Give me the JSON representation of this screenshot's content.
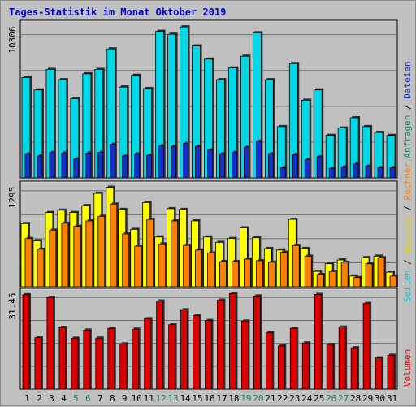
{
  "title": "Tages-Statistik im Monat Oktober 2019",
  "colors": {
    "background": "#c0c0c0",
    "title": "#0000cc",
    "anfragen": "#00d8e8",
    "dateien": "#1030d0",
    "seiten": "#00c8d8",
    "besuche": "#ffff00",
    "rechner": "#ff8000",
    "volumen": "#dd0000",
    "weekend_label": "#208060"
  },
  "chart_data": [
    {
      "type": "bar",
      "name": "Anfragen / Dateien",
      "y_max_label": "10306",
      "ylim": [
        0,
        10306
      ],
      "grid": true,
      "x": [
        1,
        2,
        3,
        4,
        5,
        6,
        7,
        8,
        9,
        10,
        11,
        12,
        13,
        14,
        15,
        16,
        17,
        18,
        19,
        20,
        21,
        22,
        23,
        24,
        25,
        26,
        27,
        28,
        29,
        30,
        31
      ],
      "series": [
        {
          "name": "Anfragen",
          "values": [
            6850,
            6000,
            7400,
            6700,
            5400,
            7100,
            7400,
            8800,
            6200,
            7000,
            6100,
            10000,
            9800,
            10300,
            9000,
            8100,
            6700,
            7500,
            8300,
            9900,
            6700,
            3500,
            7800,
            5300,
            6000,
            2900,
            3400,
            4100,
            3500,
            3100,
            2900
          ]
        },
        {
          "name": "Dateien",
          "values": [
            1650,
            1500,
            1750,
            1700,
            1300,
            1700,
            1750,
            2300,
            1500,
            1650,
            1550,
            2200,
            2150,
            2350,
            2150,
            1900,
            1650,
            1750,
            2100,
            2500,
            1650,
            700,
            1600,
            1250,
            1450,
            650,
            750,
            950,
            800,
            700,
            700
          ]
        }
      ]
    },
    {
      "type": "bar",
      "name": "Seiten / Besuche / Rechner",
      "y_max_label": "1295",
      "ylim": [
        0,
        1295
      ],
      "grid": true,
      "x": [
        1,
        2,
        3,
        4,
        5,
        6,
        7,
        8,
        9,
        10,
        11,
        12,
        13,
        14,
        15,
        16,
        17,
        18,
        19,
        20,
        21,
        22,
        23,
        24,
        25,
        26,
        27,
        28,
        29,
        30,
        31
      ],
      "series": [
        {
          "name": "Seiten",
          "values": [
            0,
            0,
            0,
            0,
            0,
            0,
            0,
            0,
            0,
            0,
            0,
            0,
            0,
            0,
            0,
            0,
            0,
            0,
            0,
            0,
            0,
            0,
            0,
            0,
            0,
            0,
            0,
            0,
            0,
            0,
            0
          ]
        },
        {
          "name": "Besuche",
          "values": [
            825,
            600,
            970,
            1000,
            970,
            1060,
            1220,
            1300,
            1010,
            750,
            1100,
            650,
            1020,
            1010,
            860,
            650,
            580,
            630,
            770,
            640,
            500,
            480,
            880,
            500,
            200,
            300,
            350,
            140,
            380,
            400,
            190
          ]
        },
        {
          "name": "Rechner",
          "values": [
            630,
            490,
            740,
            830,
            790,
            860,
            920,
            1080,
            690,
            530,
            880,
            560,
            860,
            540,
            480,
            440,
            330,
            330,
            360,
            340,
            320,
            450,
            540,
            400,
            160,
            200,
            320,
            120,
            300,
            380,
            140
          ]
        }
      ]
    },
    {
      "type": "bar",
      "name": "Volumen",
      "y_max_label": "31.45",
      "ylim": [
        0,
        31.45
      ],
      "grid": true,
      "x": [
        1,
        2,
        3,
        4,
        5,
        6,
        7,
        8,
        9,
        10,
        11,
        12,
        13,
        14,
        15,
        16,
        17,
        18,
        19,
        20,
        21,
        22,
        23,
        24,
        25,
        26,
        27,
        28,
        29,
        30,
        31
      ],
      "series": [
        {
          "name": "Volumen",
          "values": [
            31.5,
            17.2,
            30.6,
            20.6,
            17.0,
            19.7,
            17.0,
            20.3,
            15.1,
            20.0,
            23.5,
            29.4,
            21.5,
            26.5,
            24.6,
            22.9,
            29.7,
            31.9,
            22.7,
            31.1,
            18.9,
            14.4,
            20.3,
            15.4,
            31.6,
            14.9,
            20.7,
            13.8,
            28.6,
            10.4,
            11.3
          ]
        }
      ]
    }
  ],
  "x_labels": [
    "1",
    "2",
    "3",
    "4",
    "5",
    "6",
    "7",
    "8",
    "9",
    "10",
    "11",
    "12",
    "13",
    "14",
    "15",
    "16",
    "17",
    "18",
    "19",
    "20",
    "21",
    "22",
    "23",
    "24",
    "25",
    "26",
    "27",
    "28",
    "29",
    "30",
    "31"
  ],
  "weekend_days": [
    5,
    6,
    12,
    13,
    19,
    20,
    26,
    27
  ],
  "legend_top": [
    {
      "text": "Anfragen",
      "color": "#208060"
    },
    {
      "text": " / ",
      "color": "#000000"
    },
    {
      "text": "Dateien",
      "color": "#1030d0"
    }
  ],
  "legend_mid": [
    {
      "text": "Seiten",
      "color": "#00c8d8"
    },
    {
      "text": " / ",
      "color": "#000000"
    },
    {
      "text": "Besuche",
      "color": "#e0d000"
    },
    {
      "text": " / ",
      "color": "#000000"
    },
    {
      "text": "Rechner",
      "color": "#ff8000"
    }
  ],
  "legend_bottom": [
    {
      "text": "Volumen",
      "color": "#dd0000"
    }
  ]
}
